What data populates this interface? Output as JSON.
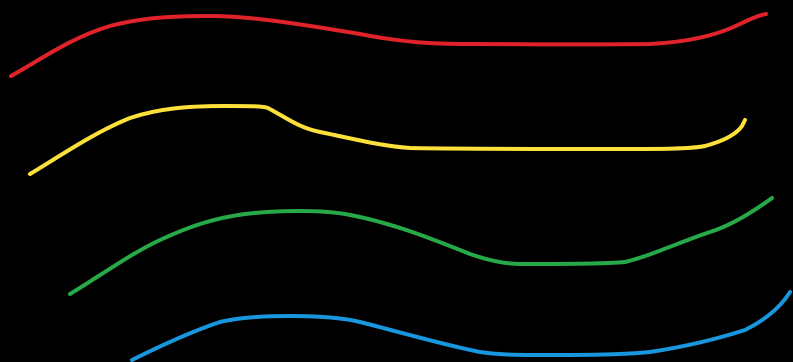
{
  "background": "#000000",
  "strokes": [
    {
      "name": "red-wave-line",
      "color": "#e0232b"
    },
    {
      "name": "yellow-wave-line",
      "color": "#fde13a"
    },
    {
      "name": "green-wave-line",
      "color": "#27a949"
    },
    {
      "name": "blue-wave-line",
      "color": "#1896de"
    }
  ]
}
